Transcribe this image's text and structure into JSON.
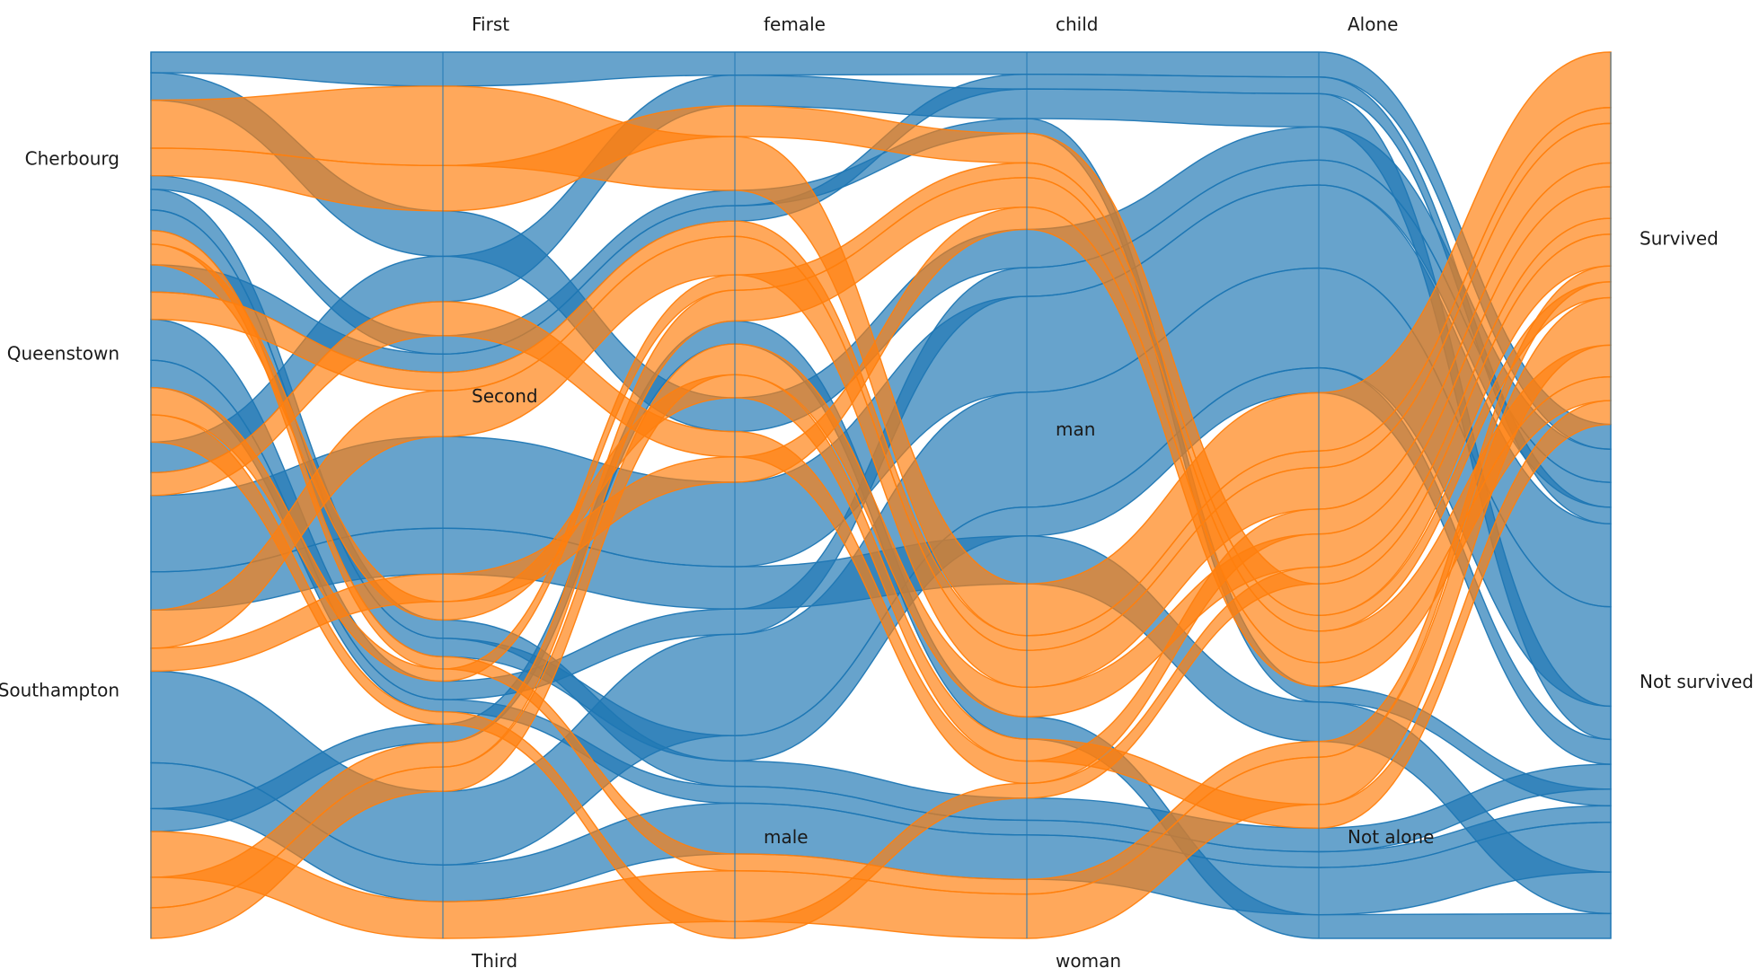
{
  "chart_data": {
    "type": "parallel-categories",
    "title": "",
    "dimensions": [
      {
        "categories": [
          {
            "label": "Cherbourg",
            "share": 0.24
          },
          {
            "label": "Queenstown",
            "share": 0.2
          },
          {
            "label": "Southampton",
            "share": 0.56
          }
        ]
      },
      {
        "categories": [
          {
            "label": "First",
            "share": 0.32
          },
          {
            "label": "Second",
            "share": 0.3
          },
          {
            "label": "Third",
            "share": 0.38
          }
        ]
      },
      {
        "categories": [
          {
            "label": "female",
            "share": 0.39
          },
          {
            "label": "male",
            "share": 0.61
          }
        ]
      },
      {
        "categories": [
          {
            "label": "child",
            "share": 0.2
          },
          {
            "label": "man",
            "share": 0.4
          },
          {
            "label": "woman",
            "share": 0.4
          }
        ]
      },
      {
        "categories": [
          {
            "label": "Alone",
            "share": 0.6
          },
          {
            "label": "Not alone",
            "share": 0.4
          }
        ]
      },
      {
        "categories": [
          {
            "label": "Survived",
            "share": 0.42
          },
          {
            "label": "Not survived",
            "share": 0.58
          }
        ]
      }
    ],
    "series": [
      {
        "color": "#1f77b4"
      },
      {
        "color": "#ff7f0e"
      }
    ],
    "flows": [
      {
        "series": 0,
        "path": [
          0,
          0,
          0,
          0,
          0,
          1
        ],
        "weight": 3
      },
      {
        "series": 0,
        "path": [
          0,
          0,
          1,
          1,
          0,
          1
        ],
        "weight": 4
      },
      {
        "series": 0,
        "path": [
          0,
          2,
          1,
          2,
          1,
          1
        ],
        "weight": 3
      },
      {
        "series": 0,
        "path": [
          0,
          1,
          0,
          0,
          1,
          1
        ],
        "weight": 2
      },
      {
        "series": 0,
        "path": [
          1,
          2,
          1,
          1,
          0,
          1
        ],
        "weight": 3
      },
      {
        "series": 0,
        "path": [
          1,
          1,
          0,
          0,
          0,
          1
        ],
        "weight": 2
      },
      {
        "series": 0,
        "path": [
          1,
          2,
          1,
          2,
          1,
          1
        ],
        "weight": 2
      },
      {
        "series": 0,
        "path": [
          2,
          1,
          1,
          1,
          0,
          1
        ],
        "weight": 10
      },
      {
        "series": 0,
        "path": [
          2,
          2,
          1,
          1,
          0,
          1
        ],
        "weight": 12
      },
      {
        "series": 0,
        "path": [
          2,
          2,
          1,
          2,
          1,
          1
        ],
        "weight": 6
      },
      {
        "series": 0,
        "path": [
          2,
          0,
          0,
          0,
          0,
          1
        ],
        "weight": 4
      },
      {
        "series": 0,
        "path": [
          2,
          1,
          1,
          1,
          1,
          1
        ],
        "weight": 5
      },
      {
        "series": 0,
        "path": [
          2,
          2,
          0,
          2,
          1,
          1
        ],
        "weight": 3
      },
      {
        "series": 0,
        "path": [
          0,
          2,
          1,
          1,
          0,
          1
        ],
        "weight": 3
      },
      {
        "series": 1,
        "path": [
          0,
          0,
          0,
          2,
          0,
          0
        ],
        "weight": 7
      },
      {
        "series": 1,
        "path": [
          0,
          0,
          0,
          0,
          1,
          0
        ],
        "weight": 4
      },
      {
        "series": 1,
        "path": [
          0,
          2,
          1,
          2,
          1,
          0
        ],
        "weight": 2
      },
      {
        "series": 1,
        "path": [
          1,
          2,
          0,
          0,
          1,
          0
        ],
        "weight": 2
      },
      {
        "series": 1,
        "path": [
          1,
          1,
          0,
          2,
          0,
          0
        ],
        "weight": 2
      },
      {
        "series": 1,
        "path": [
          2,
          1,
          0,
          2,
          0,
          0
        ],
        "weight": 5
      },
      {
        "series": 1,
        "path": [
          2,
          2,
          1,
          2,
          1,
          0
        ],
        "weight": 6
      },
      {
        "series": 1,
        "path": [
          2,
          2,
          0,
          0,
          1,
          0
        ],
        "weight": 4
      },
      {
        "series": 1,
        "path": [
          2,
          0,
          1,
          2,
          0,
          0
        ],
        "weight": 3
      },
      {
        "series": 1,
        "path": [
          2,
          1,
          1,
          0,
          1,
          0
        ],
        "weight": 3
      },
      {
        "series": 1,
        "path": [
          2,
          2,
          0,
          2,
          0,
          0
        ],
        "weight": 4
      },
      {
        "series": 1,
        "path": [
          0,
          2,
          0,
          2,
          1,
          0
        ],
        "weight": 3
      },
      {
        "series": 1,
        "path": [
          1,
          2,
          1,
          2,
          0,
          0
        ],
        "weight": 2
      }
    ]
  }
}
